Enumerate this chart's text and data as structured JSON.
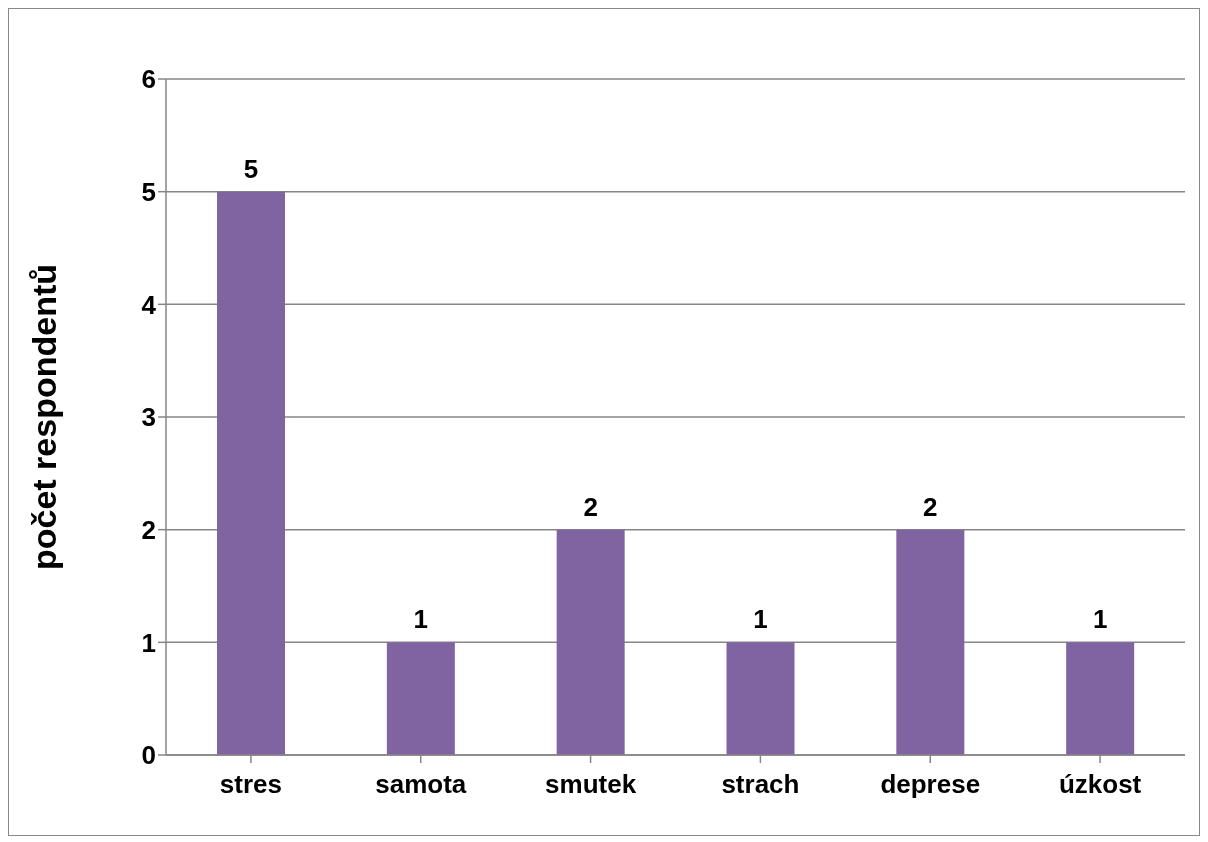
{
  "chart_data": {
    "type": "bar",
    "ylabel": "počet respondentů",
    "categories": [
      "stres",
      "samota",
      "smutek",
      "strach",
      "deprese",
      "úzkost"
    ],
    "values": [
      5,
      1,
      2,
      1,
      2,
      1
    ],
    "color": "#8064a2",
    "ylim": [
      0,
      6
    ],
    "yticks": [
      0,
      1,
      2,
      3,
      4,
      5,
      6
    ],
    "grid": "y",
    "data_labels": true
  }
}
